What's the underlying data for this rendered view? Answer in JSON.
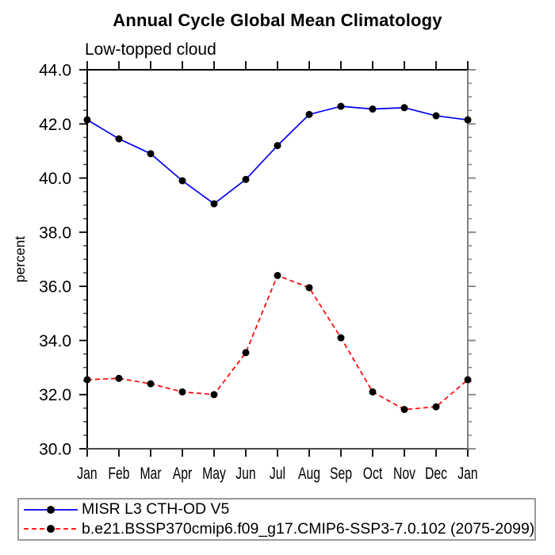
{
  "chart_data": {
    "type": "line",
    "title": "Annual Cycle Global Mean Climatology",
    "subtitle": "Low-topped cloud",
    "xlabel": "",
    "ylabel": "percent",
    "categories": [
      "Jan",
      "Feb",
      "Mar",
      "Apr",
      "May",
      "Jun",
      "Jul",
      "Aug",
      "Sep",
      "Oct",
      "Nov",
      "Dec",
      "Jan"
    ],
    "ylim": [
      30.0,
      44.0
    ],
    "ytick_step": 2.0,
    "yminor_step": 0.5,
    "ytick_format_decimals": 1,
    "grid": false,
    "legend_position": "bottom-left-box",
    "series": [
      {
        "name": "MISR L3 CTH-OD V5",
        "color": "#0000ee",
        "style": "solid",
        "dash": "",
        "marker": "filled-circle",
        "marker_color": "#000000",
        "values": [
          42.15,
          41.45,
          40.9,
          39.9,
          39.05,
          39.95,
          41.2,
          42.35,
          42.65,
          42.55,
          42.6,
          42.3,
          42.15
        ]
      },
      {
        "name": "b.e21.BSSP370cmip6.f09_g17.CMIP6-SSP3-7.0.102 (2075-2099)",
        "color": "#ff0000",
        "style": "dashed",
        "dash": "6 4",
        "marker": "filled-circle",
        "marker_color": "#000000",
        "values": [
          32.55,
          32.6,
          32.4,
          32.1,
          32.0,
          33.55,
          36.4,
          35.95,
          34.1,
          32.1,
          31.45,
          31.55,
          32.55
        ]
      }
    ]
  }
}
